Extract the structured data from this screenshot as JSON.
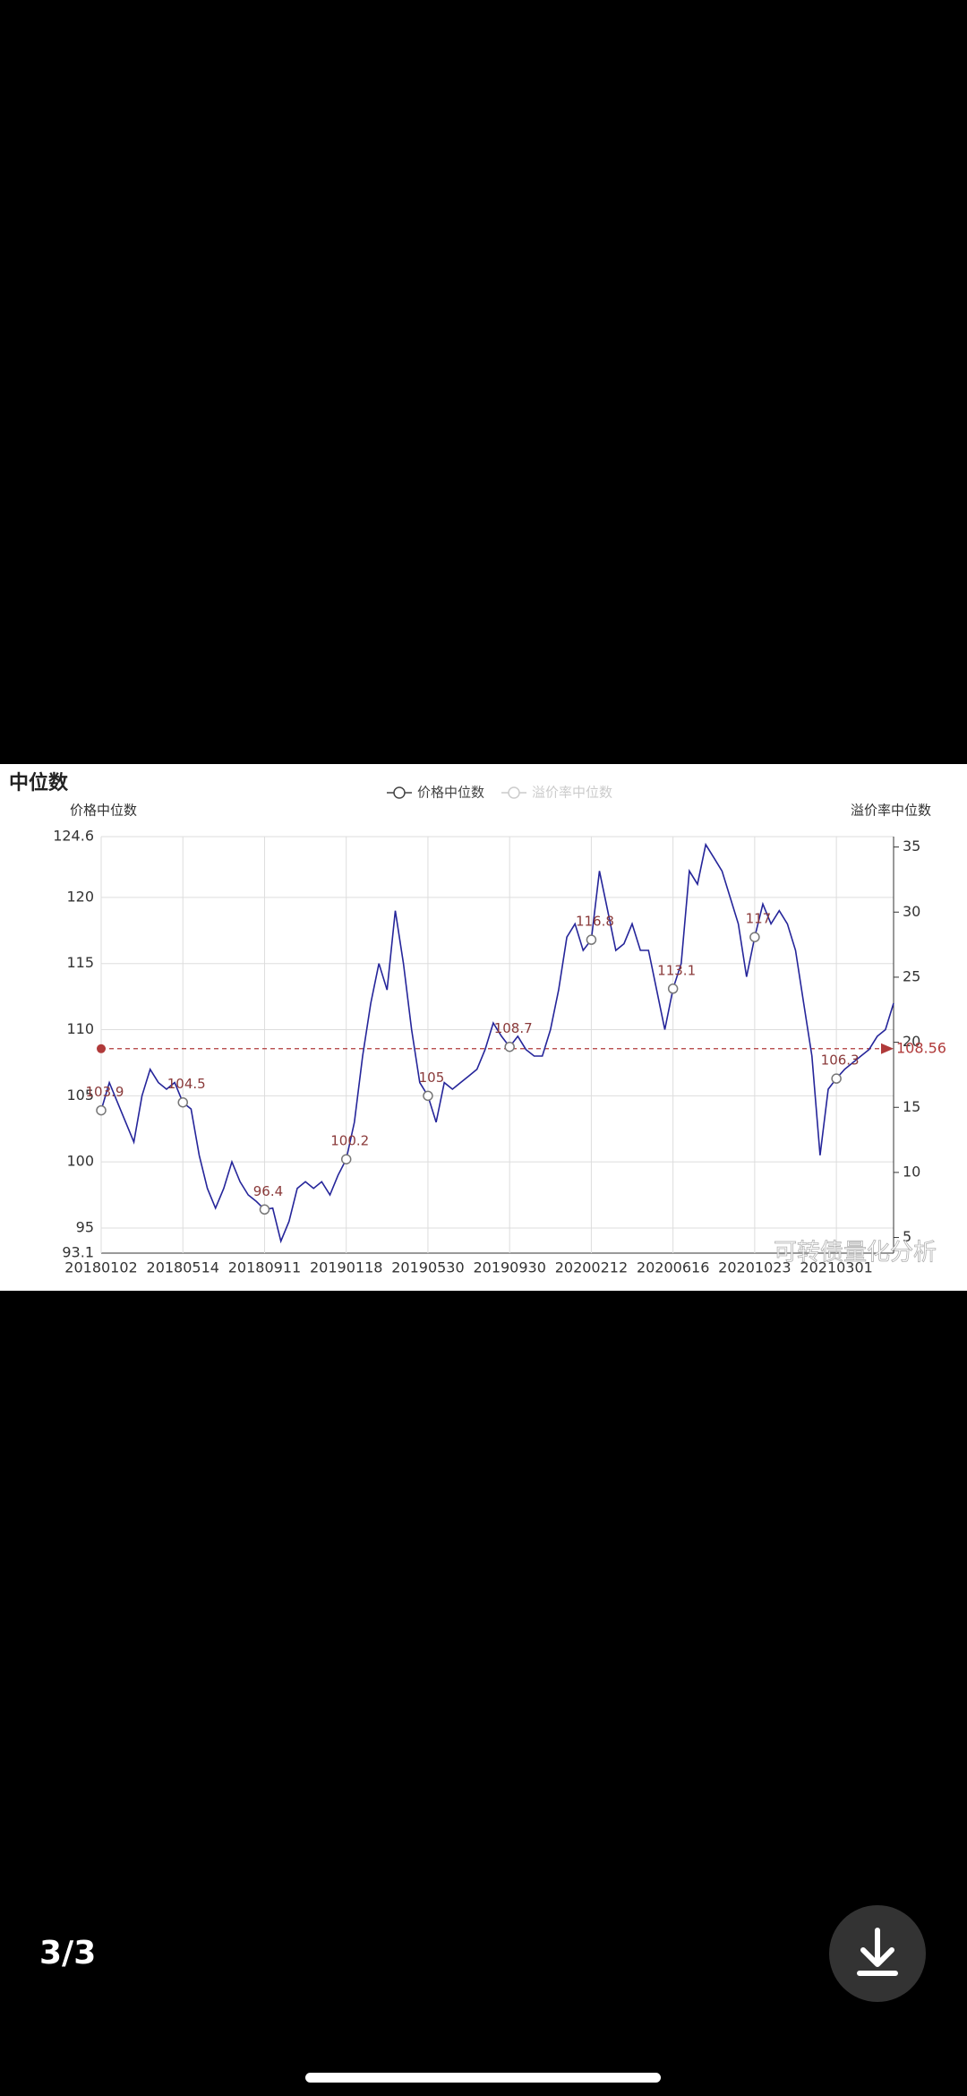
{
  "viewer": {
    "counter": "3/3"
  },
  "chart_data": {
    "type": "line",
    "title": "中位数",
    "y_axis_label": "价格中位数",
    "y2_axis_label": "溢价率中位数",
    "legend": [
      {
        "name": "价格中位数",
        "active": true
      },
      {
        "name": "溢价率中位数",
        "active": false
      }
    ],
    "watermark": "可转债量化分析",
    "categories": [
      "20180102",
      null,
      null,
      null,
      null,
      null,
      null,
      null,
      null,
      null,
      "20180514",
      null,
      null,
      null,
      null,
      null,
      null,
      null,
      null,
      null,
      "20180911",
      null,
      null,
      null,
      null,
      null,
      null,
      null,
      null,
      null,
      "20190118",
      null,
      null,
      null,
      null,
      null,
      null,
      null,
      null,
      null,
      "20190530",
      null,
      null,
      null,
      null,
      null,
      null,
      null,
      null,
      null,
      "20190930",
      null,
      null,
      null,
      null,
      null,
      null,
      null,
      null,
      null,
      "20200212",
      null,
      null,
      null,
      null,
      null,
      null,
      null,
      null,
      null,
      "20200616",
      null,
      null,
      null,
      null,
      null,
      null,
      null,
      null,
      null,
      "20201023",
      null,
      null,
      null,
      null,
      null,
      null,
      null,
      null,
      null,
      "20210301",
      null,
      null,
      null,
      null,
      null,
      null,
      null
    ],
    "series": [
      {
        "name": "价格中位数",
        "color": "#25259a",
        "values": [
          103.9,
          106,
          104.5,
          103,
          101.5,
          105,
          107,
          106,
          105.5,
          106,
          104.5,
          104,
          100.5,
          98,
          96.5,
          98,
          100,
          98.5,
          97.5,
          97,
          96.4,
          96.5,
          94,
          95.5,
          98,
          98.5,
          98,
          98.5,
          97.5,
          99,
          100.2,
          103,
          108,
          112,
          115,
          113,
          119,
          115,
          110,
          106,
          105,
          103,
          106,
          105.5,
          106,
          106.5,
          107,
          108.5,
          110.5,
          109.5,
          108.7,
          109.5,
          108.5,
          108,
          108,
          110,
          113,
          117,
          118,
          116,
          116.8,
          122,
          119,
          116,
          116.5,
          118,
          116,
          116,
          113,
          110,
          113.1,
          115,
          122,
          121,
          124,
          123,
          122,
          120,
          118,
          114,
          117,
          119.5,
          118,
          119,
          118,
          116,
          112,
          108,
          100.5,
          105.5,
          106.3,
          107,
          107.5,
          108,
          108.5,
          109.5,
          110,
          112
        ]
      }
    ],
    "reference_line": 108.56,
    "reference_color": "#b03a3a",
    "ylim": [
      93.1,
      124.6
    ],
    "yticks": [
      93.1,
      95,
      100,
      105,
      110,
      115,
      120,
      124.6
    ],
    "y2lim": [
      3.8,
      35.8
    ],
    "y2ticks": [
      5,
      10,
      15,
      20,
      25,
      30,
      35
    ],
    "grid": true
  }
}
